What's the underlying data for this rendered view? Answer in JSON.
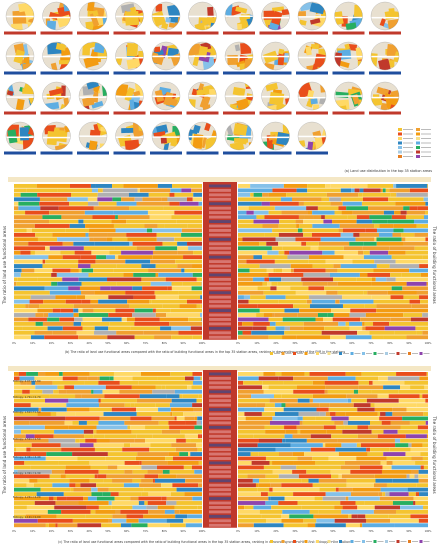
{
  "palette": [
    "#F4C430",
    "#F0A030",
    "#E94E1B",
    "#F39C12",
    "#FFD966",
    "#F7E08A",
    "#2E86C1",
    "#5DADE2",
    "#85C1E9",
    "#27AE60",
    "#A9CCE3",
    "#C0392B",
    "#E67E22",
    "#8E44AD",
    "#F5B7B1",
    "#B0B0B0"
  ],
  "caption_a": "(a) Land use distribution in the top 35 station areas",
  "caption_b": "(b) The ratio of land use functional areas compared with the ratio of building functional areas in the top 35 station areas, ranking in descending order of the FAR in the stations",
  "caption_c": "(c) The ratio of land use functional areas compared with the ratio of building functional areas in the top 35 station areas, ranking in descending order of the first Entropy in the stations",
  "axis_left": "The ratio of land use functional areas",
  "axis_right": "The ratio of building functional areas",
  "entropy_labels": [
    "Entropy: 2.07>=1.80",
    "Entropy: 1.79>=1.70",
    "Entropy: 1.69>=1.60",
    "Entropy: 1.59>=1.50",
    "Entropy: 1.49>=1.40",
    "Entropy: 1.39>=1.30",
    "Entropy: 1.29>=1.20",
    "Entropy: 1.19>=1.00"
  ],
  "chart_data": [
    {
      "type": "bar",
      "stacked": true,
      "orientation": "horizontal",
      "name": "b-left",
      "rows": 35,
      "xlim": [
        0,
        100
      ]
    },
    {
      "type": "bar",
      "stacked": true,
      "orientation": "horizontal",
      "name": "b-right",
      "rows": 35,
      "xlim": [
        0,
        100
      ]
    },
    {
      "type": "bar",
      "stacked": true,
      "orientation": "horizontal",
      "name": "c-left",
      "rows": 35,
      "xlim": [
        0,
        100
      ]
    },
    {
      "type": "bar",
      "stacked": true,
      "orientation": "horizontal",
      "name": "c-right",
      "rows": 35,
      "xlim": [
        0,
        100
      ]
    }
  ]
}
